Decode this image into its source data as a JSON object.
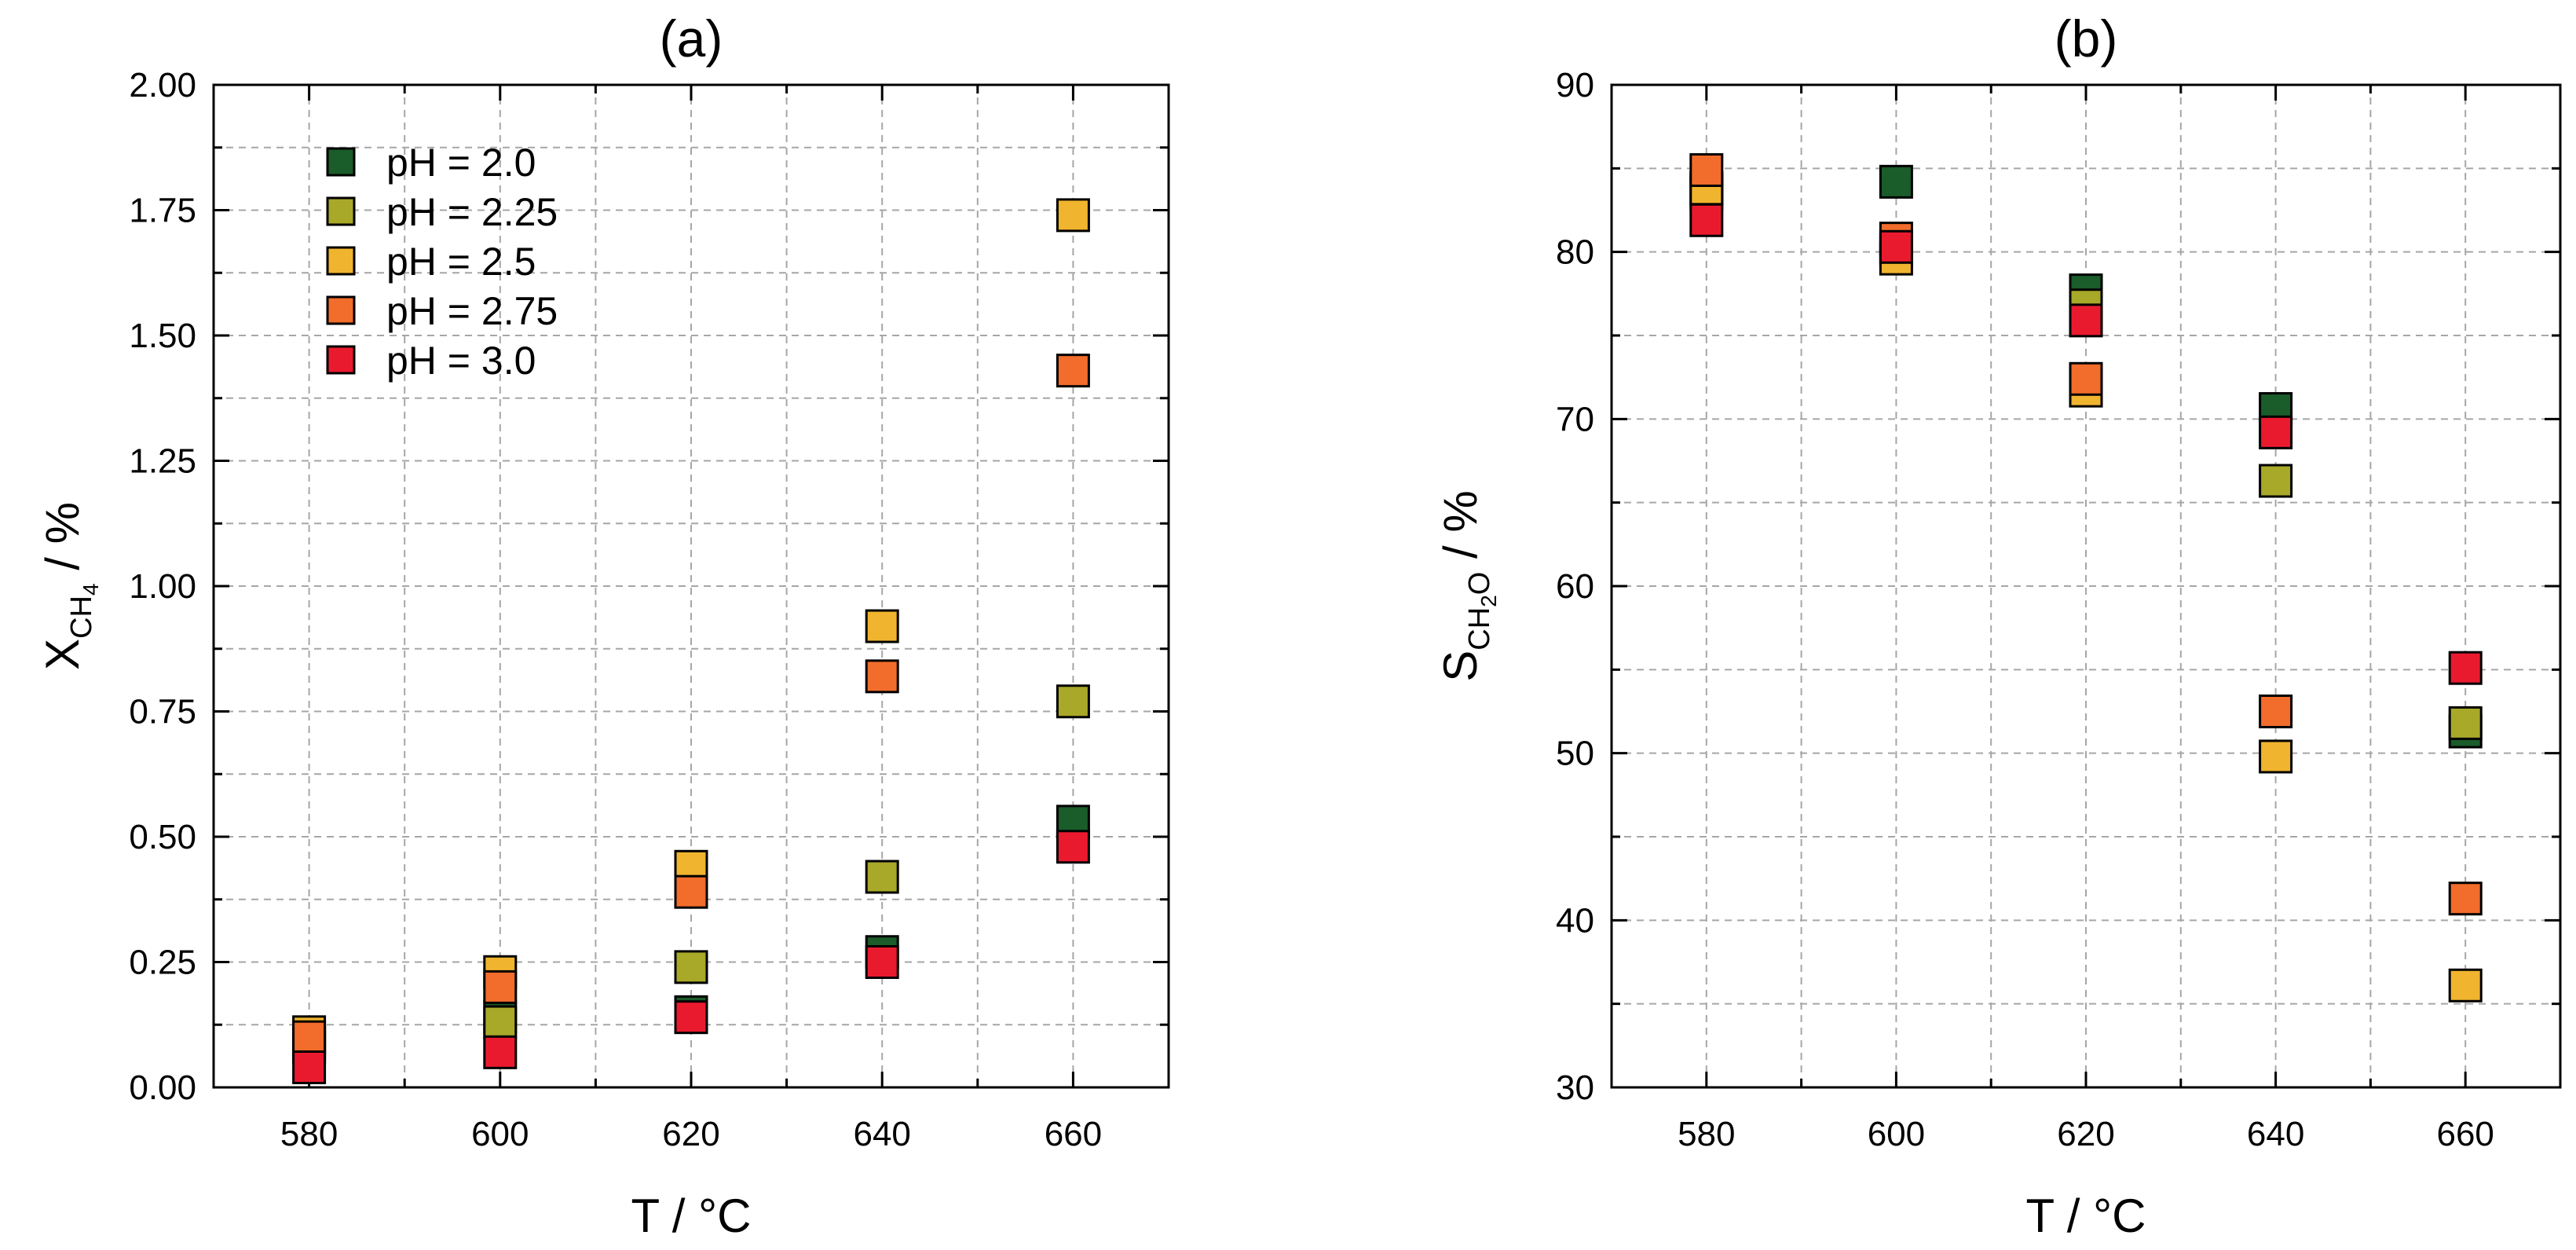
{
  "chart_data": [
    {
      "type": "scatter",
      "id": "a",
      "title": "(a)",
      "xlabel": "T / °C",
      "ylabel": {
        "main": "X",
        "sub": "CH",
        "subsub": "4",
        "suffix": " / %"
      },
      "xlim": [
        570,
        670
      ],
      "ylim": [
        0,
        2.0
      ],
      "xticks": [
        580,
        600,
        620,
        640,
        660
      ],
      "yticks": [
        0,
        0.25,
        0.5,
        0.75,
        1.0,
        1.25,
        1.5,
        1.75,
        2.0
      ],
      "ytick_labels": [
        "0.00",
        "0.25",
        "0.50",
        "0.75",
        "1.00",
        "1.25",
        "1.50",
        "1.75",
        "2.00"
      ],
      "legend": {
        "position": "top-left",
        "entries": [
          "pH = 2.0",
          "pH = 2.25",
          "pH = 2.5",
          "pH = 2.75",
          "pH = 3.0"
        ]
      },
      "series": [
        {
          "name": "pH = 2.0",
          "color": "#1a5c2a",
          "x": [
            580,
            600,
            620,
            640,
            660
          ],
          "y": [
            0.08,
            0.14,
            0.15,
            0.27,
            0.53
          ]
        },
        {
          "name": "pH = 2.25",
          "color": "#a8a829",
          "x": [
            580,
            600,
            620,
            640,
            660
          ],
          "y": [
            0.09,
            0.13,
            0.24,
            0.42,
            0.77
          ]
        },
        {
          "name": "pH = 2.5",
          "color": "#f0b42e",
          "x": [
            580,
            600,
            620,
            640,
            660
          ],
          "y": [
            0.11,
            0.23,
            0.44,
            0.92,
            1.74
          ]
        },
        {
          "name": "pH = 2.75",
          "color": "#f26c2b",
          "x": [
            580,
            600,
            620,
            640,
            660
          ],
          "y": [
            0.1,
            0.2,
            0.39,
            0.82,
            1.43
          ]
        },
        {
          "name": "pH = 3.0",
          "color": "#ea1a2e",
          "x": [
            580,
            600,
            620,
            640,
            660
          ],
          "y": [
            0.04,
            0.07,
            0.14,
            0.25,
            0.48
          ]
        }
      ]
    },
    {
      "type": "scatter",
      "id": "b",
      "title": "(b)",
      "xlabel": "T / °C",
      "ylabel": {
        "main": "S",
        "sub": "CH",
        "subsub": "2",
        "subtail": "O",
        "suffix": " / %"
      },
      "xlim": [
        570,
        670
      ],
      "ylim": [
        30,
        90
      ],
      "xticks": [
        580,
        600,
        620,
        640,
        660
      ],
      "yticks": [
        30,
        40,
        50,
        60,
        70,
        80,
        90
      ],
      "ytick_labels": [
        "30",
        "40",
        "50",
        "60",
        "70",
        "80",
        "90"
      ],
      "series": [
        {
          "name": "pH = 2.0",
          "color": "#1a5c2a",
          "x": [
            580,
            600,
            620,
            640,
            660
          ],
          "y": [
            83.5,
            84.2,
            77.7,
            70.6,
            51.3
          ]
        },
        {
          "name": "pH = 2.25",
          "color": "#a8a829",
          "x": [
            580,
            600,
            620,
            640,
            660
          ],
          "y": [
            83.8,
            80.1,
            76.8,
            66.3,
            51.8
          ]
        },
        {
          "name": "pH = 2.5",
          "color": "#f0b42e",
          "x": [
            580,
            600,
            620,
            640,
            660
          ],
          "y": [
            83.8,
            79.6,
            71.7,
            49.8,
            36.1
          ]
        },
        {
          "name": "pH = 2.75",
          "color": "#f26c2b",
          "x": [
            580,
            600,
            620,
            640,
            660
          ],
          "y": [
            84.9,
            80.8,
            72.4,
            52.5,
            41.3
          ]
        },
        {
          "name": "pH = 3.0",
          "color": "#ea1a2e",
          "x": [
            580,
            600,
            620,
            640,
            660
          ],
          "y": [
            81.9,
            80.3,
            75.9,
            69.2,
            55.1
          ]
        }
      ]
    }
  ]
}
